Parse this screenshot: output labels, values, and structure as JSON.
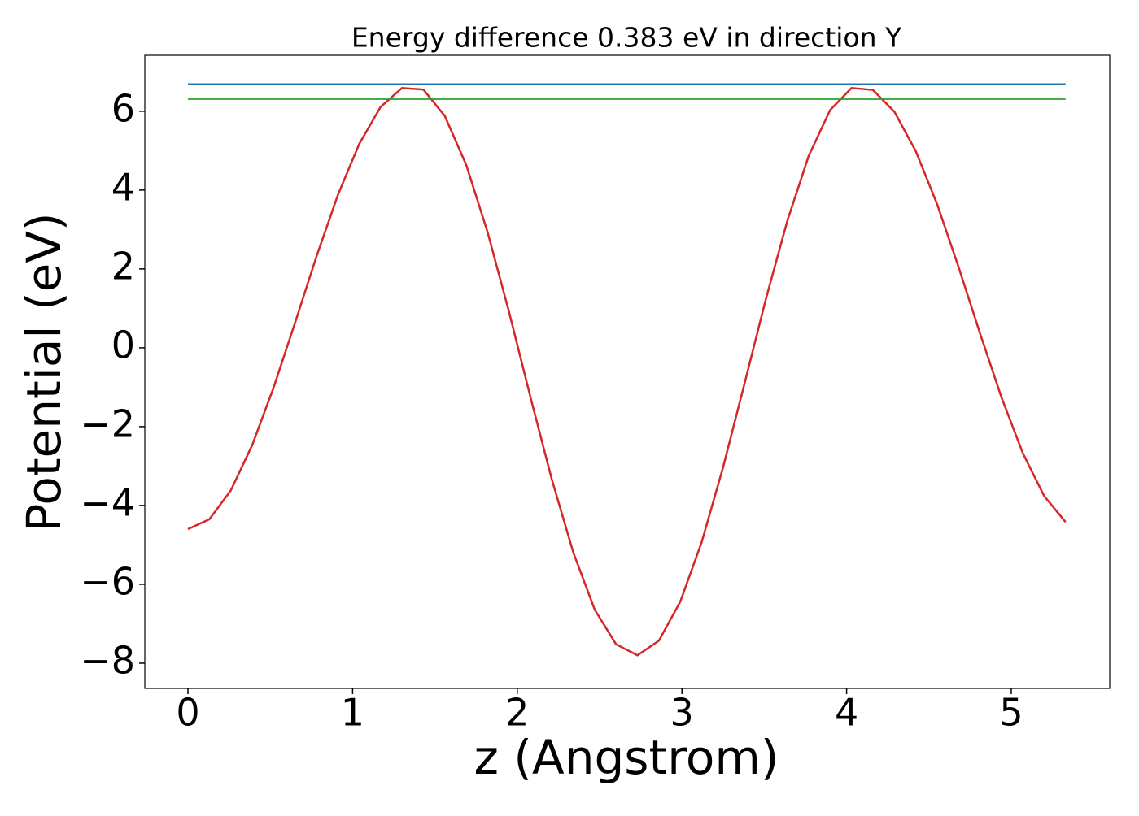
{
  "chart_data": {
    "type": "line",
    "title": "Energy difference 0.383 eV in direction Y",
    "xlabel": "z (Angstrom)",
    "ylabel": "Potential (eV)",
    "xlim": [
      -0.262,
      5.598
    ],
    "ylim": [
      -8.64,
      7.42
    ],
    "xticks": [
      0,
      1,
      2,
      3,
      4,
      5
    ],
    "yticks": [
      {
        "value": -8,
        "label": "−8"
      },
      {
        "value": -6,
        "label": "−6"
      },
      {
        "value": -4,
        "label": "−4"
      },
      {
        "value": -2,
        "label": "−2"
      },
      0,
      2,
      4,
      6
    ],
    "series": [
      {
        "color": "#d62728",
        "x": [
          0,
          0.13,
          0.26,
          0.39,
          0.52,
          0.65,
          0.78,
          0.91,
          1.04,
          1.17,
          1.3,
          1.43,
          1.56,
          1.69,
          1.82,
          1.95,
          2.08,
          2.21,
          2.34,
          2.47,
          2.6,
          2.73,
          2.86,
          2.99,
          3.12,
          3.25,
          3.38,
          3.51,
          3.64,
          3.77,
          3.9,
          4.03,
          4.16,
          4.29,
          4.42,
          4.55,
          4.68,
          4.81,
          4.94,
          5.07,
          5.2,
          5.33
        ],
        "values": [
          -4.6,
          -4.35,
          -3.62,
          -2.47,
          -1.01,
          0.63,
          2.31,
          3.87,
          5.17,
          6.11,
          6.59,
          6.55,
          5.88,
          4.64,
          2.93,
          0.91,
          -1.25,
          -3.34,
          -5.19,
          -6.64,
          -7.52,
          -7.8,
          -7.43,
          -6.44,
          -4.93,
          -3.03,
          -0.91,
          1.24,
          3.22,
          4.87,
          6.03,
          6.59,
          6.54,
          5.99,
          4.99,
          3.64,
          2.05,
          0.37,
          -1.25,
          -2.67,
          -3.76,
          -4.42
        ]
      },
      {
        "color": "#1f77b4",
        "x": [
          0,
          5.33
        ],
        "values": [
          6.69,
          6.69
        ]
      },
      {
        "color": "#2ca02c",
        "x": [
          0,
          5.33
        ],
        "values": [
          6.307,
          6.307
        ]
      }
    ]
  }
}
